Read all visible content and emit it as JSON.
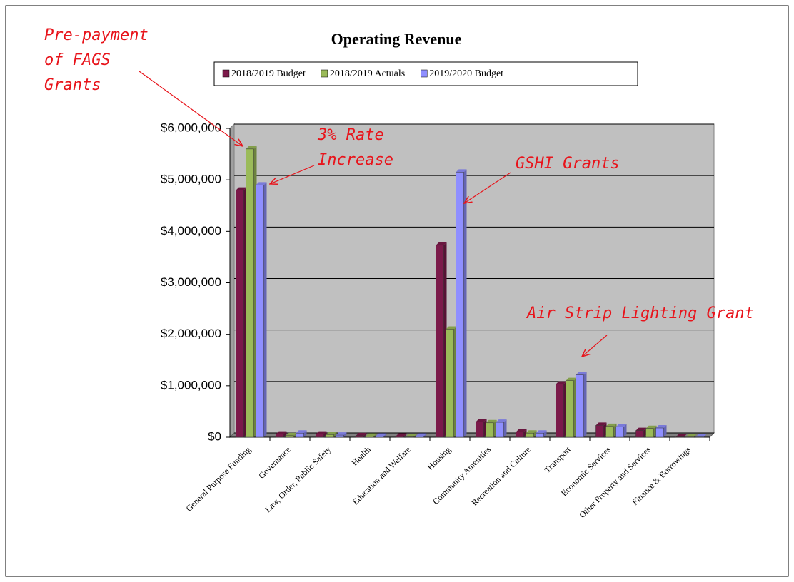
{
  "chart_data": {
    "type": "bar",
    "title": "Operating Revenue",
    "categories": [
      "General Purpose Funding",
      "Governance",
      "Law, Order, Public Safety",
      "Health",
      "Education and Welfare",
      "Housing",
      "Community Amenities",
      "Recreation and Culture",
      "Transport",
      "Economic Services",
      "Other Property and Services",
      "Finance & Borrowings"
    ],
    "series": [
      {
        "name": "2018/2019 Budget",
        "color": "#7b1a4a",
        "values": [
          4800000,
          60000,
          60000,
          30000,
          20000,
          3730000,
          300000,
          100000,
          1030000,
          230000,
          130000,
          5000
        ]
      },
      {
        "name": "2018/2019 Actuals",
        "color": "#9bbb59",
        "values": [
          5600000,
          30000,
          50000,
          20000,
          10000,
          2100000,
          280000,
          80000,
          1100000,
          210000,
          170000,
          5000
        ]
      },
      {
        "name": "2019/2020 Budget",
        "color": "#8f8fff",
        "values": [
          4900000,
          80000,
          40000,
          20000,
          20000,
          5150000,
          290000,
          80000,
          1210000,
          200000,
          180000,
          5000
        ]
      }
    ],
    "ylim": [
      0,
      6000000
    ],
    "yticks": [
      {
        "value": 0,
        "label": "$0"
      },
      {
        "value": 1000000,
        "label": "$1,000,000"
      },
      {
        "value": 2000000,
        "label": "$2,000,000"
      },
      {
        "value": 3000000,
        "label": "$3,000,000"
      },
      {
        "value": 4000000,
        "label": "$4,000,000"
      },
      {
        "value": 5000000,
        "label": "$5,000,000"
      },
      {
        "value": 6000000,
        "label": "$6,000,000"
      }
    ],
    "grid": true,
    "legend": "top",
    "annotations": [
      {
        "lines": [
          "Pre-payment",
          "of FAGS",
          "Grants"
        ]
      },
      {
        "lines": [
          "3% Rate",
          "Increase"
        ]
      },
      {
        "lines": [
          "GSHI Grants"
        ]
      },
      {
        "lines": [
          "Air Strip Lighting Grant"
        ]
      }
    ]
  }
}
